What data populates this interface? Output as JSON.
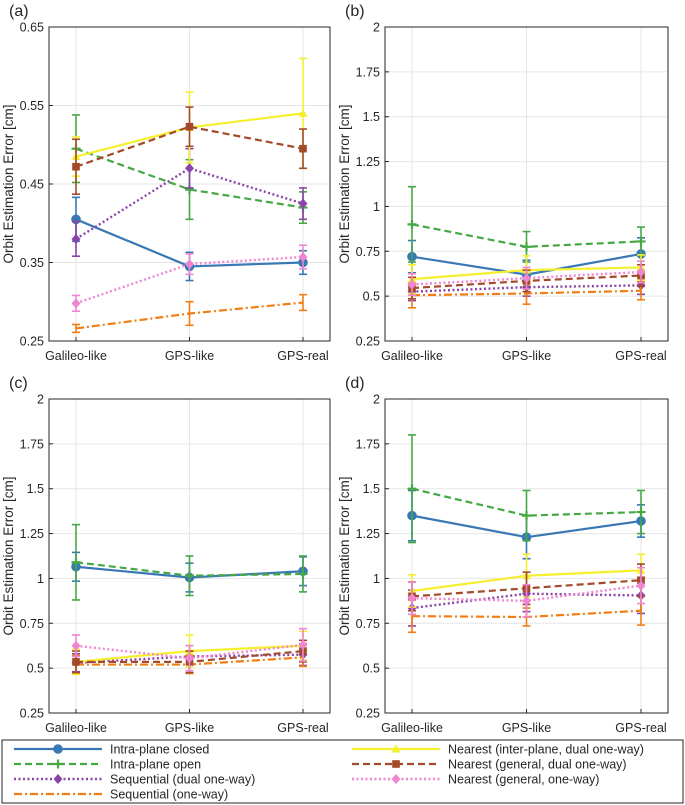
{
  "colors": {
    "intra_closed": "#3a78b5",
    "intra_open": "#45a845",
    "sequential_dual": "#8b44a8",
    "sequential_one": "#f07e14",
    "nearest_inter": "#f5ef2e",
    "nearest_general_dual": "#a34a2a",
    "nearest_general_one": "#ef86d2",
    "grid": "#e6e6e6",
    "axis": "#262626"
  },
  "legend": {
    "items": [
      {
        "key": "intra_closed",
        "label": "Intra-plane closed"
      },
      {
        "key": "nearest_inter",
        "label": "Nearest (inter-plane, dual one-way)"
      },
      {
        "key": "intra_open",
        "label": "Intra-plane open"
      },
      {
        "key": "nearest_general_dual",
        "label": "Nearest (general, dual one-way)"
      },
      {
        "key": "sequential_dual",
        "label": "Sequential (dual one-way)"
      },
      {
        "key": "nearest_general_one",
        "label": "Nearest (general, one-way)"
      },
      {
        "key": "sequential_one",
        "label": "Sequential (one-way)"
      }
    ]
  },
  "chart_data": [
    {
      "panel": "(a)",
      "type": "line",
      "categories": [
        "Galileo-like",
        "GPS-like",
        "GPS-real"
      ],
      "ylabel": "Orbit Estimation Error [cm]",
      "ylim": [
        0.25,
        0.65
      ],
      "yticks": [
        0.25,
        0.35,
        0.45,
        0.55,
        0.65
      ],
      "ytick_labels": [
        "0.25",
        "0.35",
        "0.45",
        "0.55",
        "0.65"
      ],
      "series": [
        {
          "key": "intra_closed",
          "values": [
            0.405,
            0.345,
            0.35
          ],
          "err": [
            0.028,
            0.018,
            0.015
          ]
        },
        {
          "key": "intra_open",
          "values": [
            0.495,
            0.443,
            0.42
          ],
          "err": [
            0.043,
            0.038,
            0.02
          ]
        },
        {
          "key": "sequential_dual",
          "values": [
            0.38,
            0.47,
            0.425
          ],
          "err": [
            0.022,
            0.025,
            0.02
          ]
        },
        {
          "key": "sequential_one",
          "values": [
            0.266,
            0.285,
            0.299
          ],
          "err": [
            0.005,
            0.015,
            0.01
          ]
        },
        {
          "key": "nearest_inter",
          "values": [
            0.485,
            0.522,
            0.54
          ],
          "err": [
            0.025,
            0.045,
            0.07
          ]
        },
        {
          "key": "nearest_general_dual",
          "values": [
            0.472,
            0.523,
            0.495
          ],
          "err": [
            0.035,
            0.025,
            0.025
          ]
        },
        {
          "key": "nearest_general_one",
          "values": [
            0.298,
            0.348,
            0.357
          ],
          "err": [
            0.01,
            0.013,
            0.015
          ]
        }
      ]
    },
    {
      "panel": "(b)",
      "type": "line",
      "categories": [
        "Galileo-like",
        "GPS-like",
        "GPS-real"
      ],
      "ylabel": "Orbit Estimation Error [cm]",
      "ylim": [
        0.25,
        2
      ],
      "yticks": [
        0.25,
        0.5,
        0.75,
        1,
        1.25,
        1.5,
        1.75,
        2
      ],
      "ytick_labels": [
        "0.25",
        "0.5",
        "0.75",
        "1",
        "1.25",
        "1.5",
        "1.75",
        "2"
      ],
      "series": [
        {
          "key": "intra_closed",
          "values": [
            0.72,
            0.62,
            0.735
          ],
          "err": [
            0.09,
            0.08,
            0.09
          ]
        },
        {
          "key": "intra_open",
          "values": [
            0.9,
            0.775,
            0.805
          ],
          "err": [
            0.21,
            0.085,
            0.08
          ]
        },
        {
          "key": "sequential_dual",
          "values": [
            0.525,
            0.55,
            0.56
          ],
          "err": [
            0.05,
            0.05,
            0.05
          ]
        },
        {
          "key": "sequential_one",
          "values": [
            0.505,
            0.515,
            0.53
          ],
          "err": [
            0.07,
            0.06,
            0.05
          ]
        },
        {
          "key": "nearest_inter",
          "values": [
            0.595,
            0.645,
            0.66
          ],
          "err": [
            0.08,
            0.08,
            0.07
          ]
        },
        {
          "key": "nearest_general_dual",
          "values": [
            0.545,
            0.585,
            0.615
          ],
          "err": [
            0.06,
            0.06,
            0.06
          ]
        },
        {
          "key": "nearest_general_one",
          "values": [
            0.565,
            0.6,
            0.635
          ],
          "err": [
            0.06,
            0.06,
            0.06
          ]
        }
      ]
    },
    {
      "panel": "(c)",
      "type": "line",
      "categories": [
        "Galileo-like",
        "GPS-like",
        "GPS-real"
      ],
      "ylabel": "Orbit Estimation Error [cm]",
      "ylim": [
        0.25,
        2
      ],
      "yticks": [
        0.25,
        0.5,
        0.75,
        1,
        1.25,
        1.5,
        1.75,
        2
      ],
      "ytick_labels": [
        "0.25",
        "0.5",
        "0.75",
        "1",
        "1.25",
        "1.5",
        "1.75",
        "2"
      ],
      "series": [
        {
          "key": "intra_closed",
          "values": [
            1.065,
            1.005,
            1.04
          ],
          "err": [
            0.08,
            0.08,
            0.08
          ]
        },
        {
          "key": "intra_open",
          "values": [
            1.09,
            1.015,
            1.025
          ],
          "err": [
            0.21,
            0.11,
            0.1
          ]
        },
        {
          "key": "sequential_dual",
          "values": [
            0.53,
            0.565,
            0.575
          ],
          "err": [
            0.05,
            0.06,
            0.06
          ]
        },
        {
          "key": "sequential_one",
          "values": [
            0.52,
            0.52,
            0.56
          ],
          "err": [
            0.05,
            0.05,
            0.05
          ]
        },
        {
          "key": "nearest_inter",
          "values": [
            0.535,
            0.595,
            0.625
          ],
          "err": [
            0.07,
            0.09,
            0.08
          ]
        },
        {
          "key": "nearest_general_dual",
          "values": [
            0.535,
            0.535,
            0.595
          ],
          "err": [
            0.06,
            0.06,
            0.06
          ]
        },
        {
          "key": "nearest_general_one",
          "values": [
            0.625,
            0.555,
            0.63
          ],
          "err": [
            0.06,
            0.07,
            0.09
          ]
        }
      ]
    },
    {
      "panel": "(d)",
      "type": "line",
      "categories": [
        "Galileo-like",
        "GPS-like",
        "GPS-real"
      ],
      "ylabel": "Orbit Estimation Error [cm]",
      "ylim": [
        0.25,
        2
      ],
      "yticks": [
        0.25,
        0.5,
        0.75,
        1,
        1.25,
        1.5,
        1.75,
        2
      ],
      "ytick_labels": [
        "0.25",
        "0.5",
        "0.75",
        "1",
        "1.25",
        "1.5",
        "1.75",
        "2"
      ],
      "series": [
        {
          "key": "intra_closed",
          "values": [
            1.35,
            1.23,
            1.32
          ],
          "err": [
            0.14,
            0.12,
            0.09
          ]
        },
        {
          "key": "intra_open",
          "values": [
            1.5,
            1.35,
            1.37
          ],
          "err": [
            0.3,
            0.14,
            0.12
          ]
        },
        {
          "key": "sequential_dual",
          "values": [
            0.835,
            0.915,
            0.905
          ],
          "err": [
            0.1,
            0.1,
            0.1
          ]
        },
        {
          "key": "sequential_one",
          "values": [
            0.79,
            0.785,
            0.82
          ],
          "err": [
            0.09,
            0.05,
            0.08
          ]
        },
        {
          "key": "nearest_inter",
          "values": [
            0.93,
            1.015,
            1.045
          ],
          "err": [
            0.09,
            0.12,
            0.09
          ]
        },
        {
          "key": "nearest_general_dual",
          "values": [
            0.9,
            0.945,
            0.99
          ],
          "err": [
            0.08,
            0.09,
            0.09
          ]
        },
        {
          "key": "nearest_general_one",
          "values": [
            0.89,
            0.875,
            0.96
          ],
          "err": [
            0.09,
            0.09,
            0.1
          ]
        }
      ]
    }
  ]
}
